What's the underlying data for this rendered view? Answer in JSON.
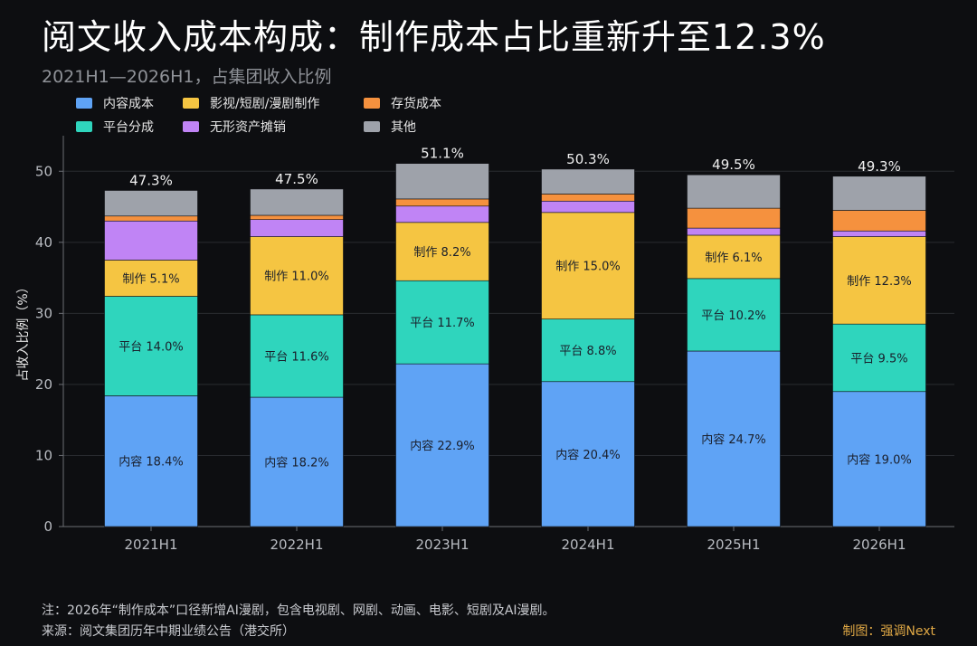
{
  "title": "阅文收入成本构成：制作成本占比重新升至12.3%",
  "subtitle": "2021H1—2026H1，占集团收入比例",
  "legend": [
    {
      "label": "内容成本",
      "color": "#5fa3f5"
    },
    {
      "label": "影视/短剧/漫剧制作",
      "color": "#f5c542"
    },
    {
      "label": "存货成本",
      "color": "#f5913e"
    },
    {
      "label": "平台分成",
      "color": "#2fd5bd"
    },
    {
      "label": "无形资产摊销",
      "color": "#c084f5"
    },
    {
      "label": "其他",
      "color": "#9ea2aa"
    }
  ],
  "chart_data": {
    "type": "bar",
    "stacked": true,
    "categories": [
      "2021H1",
      "2022H1",
      "2023H1",
      "2024H1",
      "2025H1",
      "2026H1"
    ],
    "ylabel": "占收入比例（%）",
    "ylim": [
      0,
      55
    ],
    "yticks": [
      0,
      10,
      20,
      30,
      40,
      50
    ],
    "grid": true,
    "series": [
      {
        "name": "内容成本",
        "color": "#5fa3f5",
        "values": [
          18.4,
          18.2,
          22.9,
          20.4,
          24.7,
          19.0
        ]
      },
      {
        "name": "平台分成",
        "color": "#2fd5bd",
        "values": [
          14.0,
          11.6,
          11.7,
          8.8,
          10.2,
          9.5
        ]
      },
      {
        "name": "影视/短剧/漫剧制作",
        "color": "#f5c542",
        "values": [
          5.1,
          11.0,
          8.2,
          15.0,
          6.1,
          12.3
        ]
      },
      {
        "name": "无形资产摊销",
        "color": "#c084f5",
        "values": [
          5.5,
          2.4,
          2.3,
          1.6,
          1.0,
          0.8
        ]
      },
      {
        "name": "存货成本",
        "color": "#f5913e",
        "values": [
          0.7,
          0.6,
          1.0,
          1.0,
          2.8,
          2.9
        ]
      },
      {
        "name": "其他",
        "color": "#9ea2aa",
        "values": [
          3.6,
          3.7,
          5.0,
          3.5,
          4.7,
          4.8
        ]
      }
    ],
    "segment_labels": {
      "内容成本": [
        "内容 18.4%",
        "内容 18.2%",
        "内容 22.9%",
        "内容 20.4%",
        "内容 24.7%",
        "内容 19.0%"
      ],
      "平台分成": [
        "平台 14.0%",
        "平台 11.6%",
        "平台 11.7%",
        "平台 8.8%",
        "平台 10.2%",
        "平台 9.5%"
      ],
      "影视/短剧/漫剧制作": [
        "制作 5.1%",
        "制作 11.0%",
        "制作 8.2%",
        "制作 15.0%",
        "制作 6.1%",
        "制作 12.3%"
      ]
    },
    "totals": [
      "47.3%",
      "47.5%",
      "51.1%",
      "50.3%",
      "49.5%",
      "49.3%"
    ]
  },
  "footer": {
    "note": "注：2026年“制作成本”口径新增AI漫剧，包含电视剧、网剧、动画、电影、短剧及AI漫剧。",
    "source": "来源：阅文集团历年中期业绩公告（港交所）",
    "credit": "制图：强调Next"
  }
}
